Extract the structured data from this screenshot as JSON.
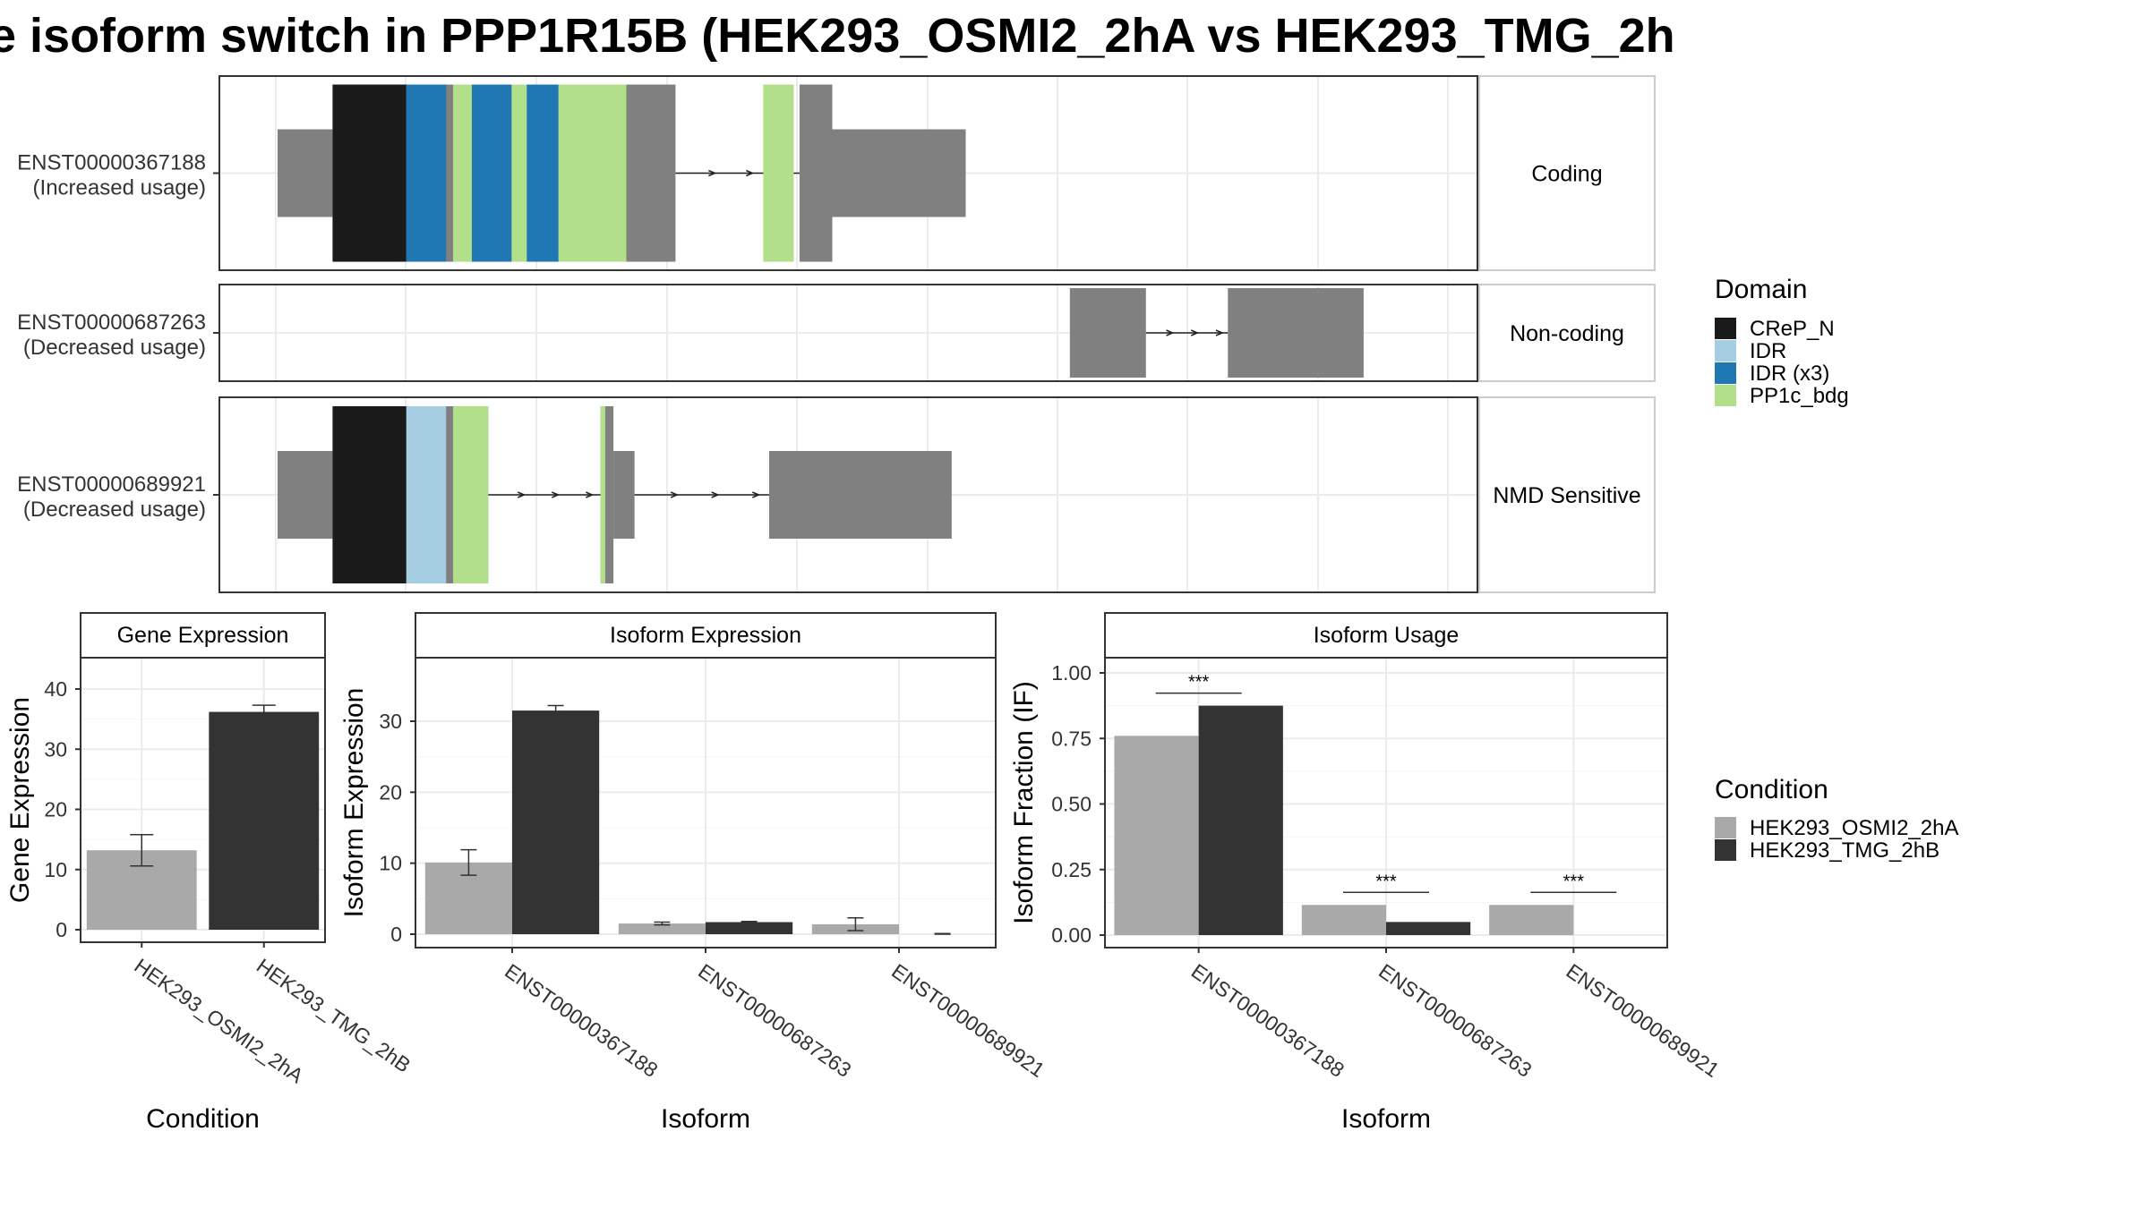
{
  "title": "e isoform switch in PPP1R15B (HEK293_OSMI2_2hA vs HEK293_TMG_2h",
  "colors": {
    "CReP_N": "#1a1a1a",
    "IDR": "#a6cee3",
    "IDR (x3)": "#1f78b4",
    "PP1c_bdg": "#b2df8a",
    "exon": "#808080",
    "HEK293_OSMI2_2hA": "#a9a9a9",
    "HEK293_TMG_2hB": "#333333"
  },
  "structure": {
    "x_range": [
      0,
      100
    ],
    "isoforms": [
      {
        "id": "ENST00000367188",
        "usage": "(Increased usage)",
        "category": "Coding",
        "coding": true,
        "introns": [
          [
            34,
            44.6
          ]
        ],
        "exons": [
          {
            "start": 0,
            "end": 4.7,
            "cds": false
          },
          {
            "start": 4.7,
            "end": 34,
            "cds": true
          },
          {
            "start": 44.6,
            "end": 47.4,
            "cds": true
          },
          {
            "start": 47.4,
            "end": 58.8,
            "cds": false
          }
        ],
        "domains": [
          {
            "name": "CReP_N",
            "start": 4.7,
            "end": 11.0
          },
          {
            "name": "IDR (x3)",
            "start": 11.0,
            "end": 14.4
          },
          {
            "name": "PP1c_bdg",
            "start": 15.0,
            "end": 16.6
          },
          {
            "name": "IDR (x3)",
            "start": 16.6,
            "end": 20.0
          },
          {
            "name": "PP1c_bdg",
            "start": 20.0,
            "end": 21.3
          },
          {
            "name": "IDR (x3)",
            "start": 21.3,
            "end": 24.0
          },
          {
            "name": "PP1c_bdg",
            "start": 24.0,
            "end": 29.8
          },
          {
            "name": "PP1c_bdg",
            "start": 41.5,
            "end": 44.1
          }
        ]
      },
      {
        "id": "ENST00000687263",
        "usage": "(Decreased usage)",
        "category": "Non-coding",
        "coding": false,
        "introns": [
          [
            74.2,
            81.2
          ]
        ],
        "exons": [
          {
            "start": 67.7,
            "end": 74.2,
            "cds": false
          },
          {
            "start": 81.2,
            "end": 92.8,
            "cds": false
          }
        ],
        "domains": []
      },
      {
        "id": "ENST00000689921",
        "usage": "(Decreased usage)",
        "category": "NMD Sensitive",
        "coding": true,
        "introns": [
          [
            18,
            27.6
          ],
          [
            30.5,
            42.0
          ]
        ],
        "exons": [
          {
            "start": 0,
            "end": 4.7,
            "cds": false
          },
          {
            "start": 4.7,
            "end": 18,
            "cds": true
          },
          {
            "start": 27.6,
            "end": 28.7,
            "cds": true
          },
          {
            "start": 28.7,
            "end": 30.5,
            "cds": false
          },
          {
            "start": 42.0,
            "end": 57.6,
            "cds": false
          }
        ],
        "domains": [
          {
            "name": "CReP_N",
            "start": 4.7,
            "end": 11.0
          },
          {
            "name": "IDR",
            "start": 11.0,
            "end": 14.4
          },
          {
            "name": "PP1c_bdg",
            "start": 15.0,
            "end": 18.0
          },
          {
            "name": "PP1c_bdg",
            "start": 27.6,
            "end": 28.0
          }
        ]
      }
    ]
  },
  "legend_domain": {
    "title": "Domain",
    "items": [
      "CReP_N",
      "IDR",
      "IDR (x3)",
      "PP1c_bdg"
    ]
  },
  "legend_condition": {
    "title": "Condition",
    "items": [
      "HEK293_OSMI2_2hA",
      "HEK293_TMG_2hB"
    ]
  },
  "chart_data": [
    {
      "type": "bar",
      "title": "Gene Expression",
      "xlabel": "Condition",
      "ylabel": "Gene Expression",
      "ylim": [
        0,
        45
      ],
      "yticks": [
        0,
        10,
        20,
        30,
        40
      ],
      "categories": [
        "HEK293_OSMI2_2hA",
        "HEK293_TMG_2hB"
      ],
      "values": [
        13.2,
        36.2
      ],
      "errors": [
        2.6,
        1.1
      ]
    },
    {
      "type": "bar",
      "title": "Isoform Expression",
      "xlabel": "Isoform",
      "ylabel": "Isoform Expression",
      "ylim": [
        0,
        38
      ],
      "yticks": [
        0,
        10,
        20,
        30
      ],
      "categories": [
        "ENST00000367188",
        "ENST00000687263",
        "ENST00000689921"
      ],
      "series": [
        {
          "name": "HEK293_OSMI2_2hA",
          "values": [
            10.1,
            1.5,
            1.4
          ],
          "errors": [
            1.8,
            0.2,
            0.9
          ]
        },
        {
          "name": "HEK293_TMG_2hB",
          "values": [
            31.5,
            1.7,
            0
          ],
          "errors": [
            0.7,
            0.1,
            0.1
          ]
        }
      ]
    },
    {
      "type": "bar",
      "title": "Isoform Usage",
      "xlabel": "Isoform",
      "ylabel": "Isoform Fraction (IF)",
      "ylim": [
        0,
        1.0
      ],
      "yticks": [
        "0.00",
        "0.25",
        "0.50",
        "0.75",
        "1.00"
      ],
      "categories": [
        "ENST00000367188",
        "ENST00000687263",
        "ENST00000689921"
      ],
      "series": [
        {
          "name": "HEK293_OSMI2_2hA",
          "values": [
            0.76,
            0.115,
            0.115
          ]
        },
        {
          "name": "HEK293_TMG_2hB",
          "values": [
            0.875,
            0.05,
            0
          ]
        }
      ],
      "significance": [
        "***",
        "***",
        "***"
      ]
    }
  ]
}
